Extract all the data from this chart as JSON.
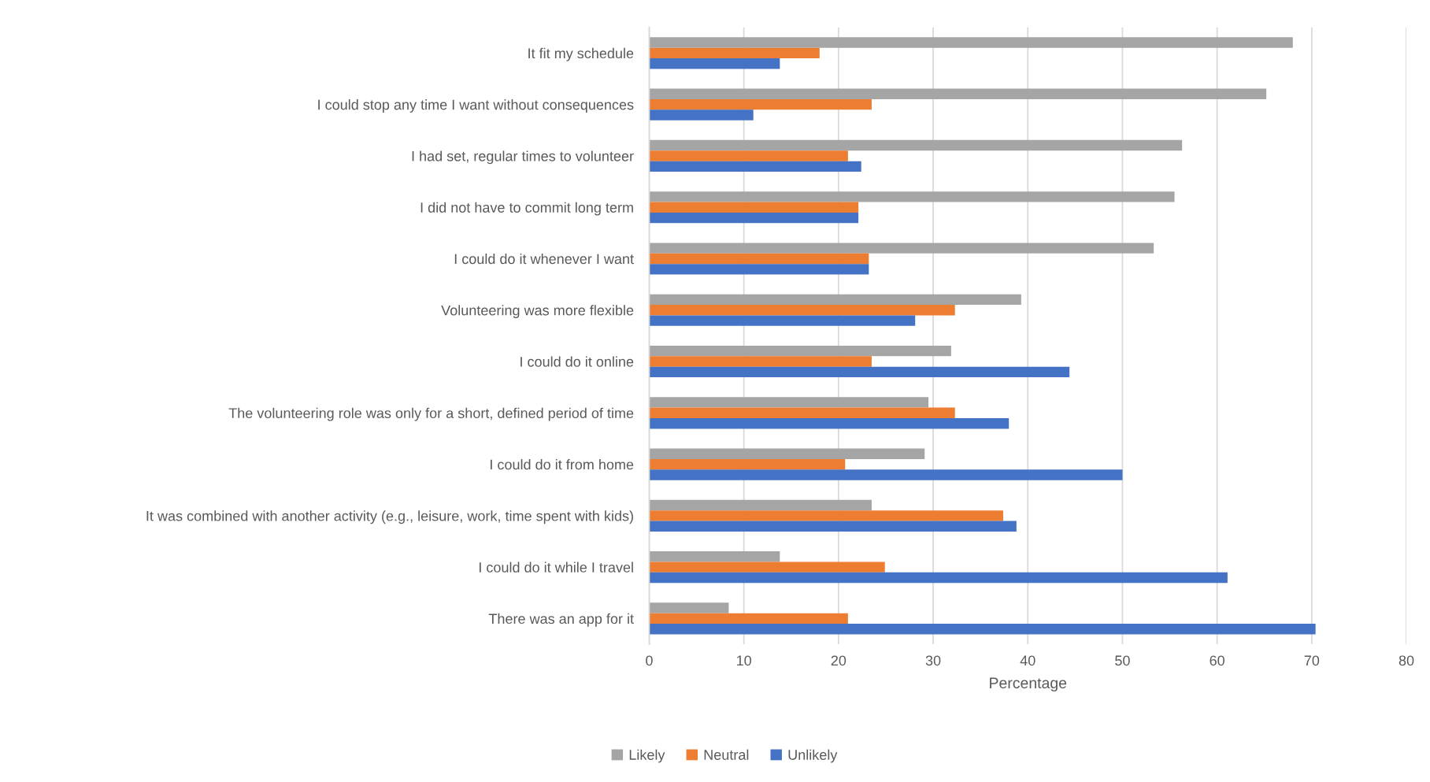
{
  "chart_data": {
    "type": "bar",
    "orientation": "horizontal",
    "categories": [
      "It fit my schedule",
      "I could stop any time I want without consequences",
      "I had set, regular times to volunteer",
      "I did not have to commit long term",
      "I could do it whenever I want",
      "Volunteering was more flexible",
      "I could do it online",
      "The volunteering role was only for a short, defined period of time",
      "I could do it from home",
      "It was combined with another activity (e.g., leisure, work, time spent with kids)",
      "I could do it while I travel",
      "There was an app for it"
    ],
    "series": [
      {
        "name": "Likely",
        "color": "#a5a5a5",
        "values": [
          68.0,
          65.2,
          56.3,
          55.5,
          53.3,
          39.3,
          31.9,
          29.5,
          29.1,
          23.5,
          13.8,
          8.4
        ]
      },
      {
        "name": "Neutral",
        "color": "#ed7d31",
        "values": [
          18.0,
          23.5,
          21.0,
          22.1,
          23.2,
          32.3,
          23.5,
          32.3,
          20.7,
          37.4,
          24.9,
          21.0
        ]
      },
      {
        "name": "Unlikely",
        "color": "#4472c4",
        "values": [
          13.8,
          11.0,
          22.4,
          22.1,
          23.2,
          28.1,
          44.4,
          38.0,
          50.0,
          38.8,
          61.1,
          70.4
        ]
      }
    ],
    "xlabel": "Percentage",
    "xlim": [
      0,
      80
    ],
    "xticks": [
      0,
      10,
      20,
      30,
      40,
      50,
      60,
      70,
      80
    ],
    "grid": "x",
    "legend": "bottom"
  }
}
